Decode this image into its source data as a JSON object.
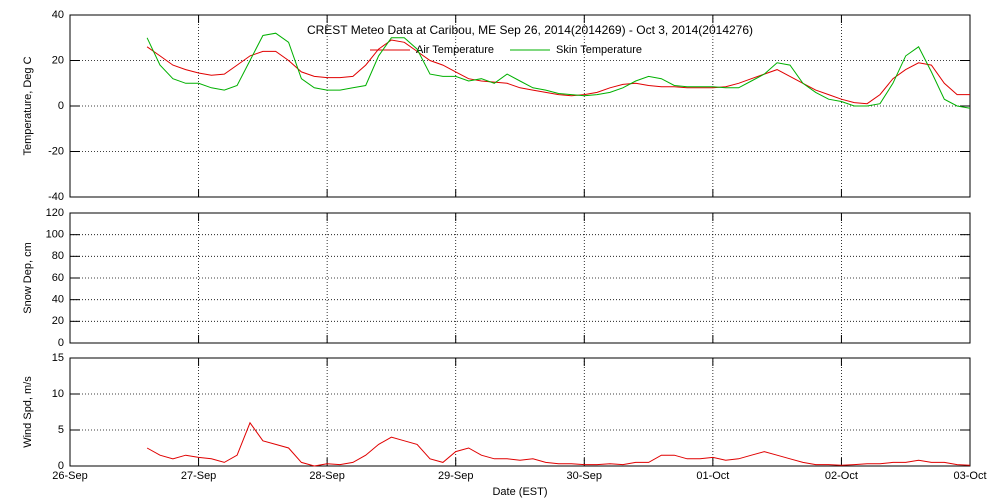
{
  "chart_data": [
    {
      "type": "line",
      "title": "CREST Meteo Data at Caribou, ME   Sep 26, 2014(2014269) - Oct  3, 2014(2014276)",
      "ylabel": "Temperature, Deg C",
      "xlim": [
        0,
        7
      ],
      "xticks": [
        0,
        1,
        2,
        3,
        4,
        5,
        6,
        7
      ],
      "ylim": [
        -40,
        40
      ],
      "yticks": [
        -40,
        -20,
        0,
        20,
        40
      ],
      "grid": true,
      "x": [
        0.6,
        0.7,
        0.8,
        0.9,
        1.0,
        1.1,
        1.2,
        1.3,
        1.4,
        1.5,
        1.6,
        1.7,
        1.8,
        1.9,
        2.0,
        2.1,
        2.2,
        2.3,
        2.4,
        2.5,
        2.6,
        2.7,
        2.8,
        2.9,
        3.0,
        3.1,
        3.2,
        3.3,
        3.4,
        3.5,
        3.6,
        3.7,
        3.8,
        3.9,
        4.0,
        4.1,
        4.2,
        4.3,
        4.4,
        4.5,
        4.6,
        4.7,
        4.8,
        4.9,
        5.0,
        5.1,
        5.2,
        5.3,
        5.4,
        5.5,
        5.6,
        5.7,
        5.8,
        5.9,
        6.0,
        6.1,
        6.2,
        6.3,
        6.4,
        6.5,
        6.6,
        6.7,
        6.8,
        6.9,
        7.0
      ],
      "series": [
        {
          "name": "Air Temperature",
          "color": "#e00000",
          "values": [
            26,
            22,
            18,
            16,
            14.5,
            13.5,
            14,
            18,
            22,
            24,
            24,
            20,
            15,
            13,
            12.5,
            12.5,
            13,
            18,
            25,
            29,
            28,
            24,
            20,
            18,
            15,
            12,
            11,
            10.5,
            10,
            8,
            7,
            6,
            5,
            4.5,
            5,
            6,
            8,
            9.5,
            10,
            9,
            8.5,
            8.5,
            8,
            8,
            8,
            8.5,
            10,
            12,
            14,
            16,
            13,
            10,
            7,
            5,
            3,
            1.5,
            1,
            5,
            12,
            16,
            19,
            18,
            10,
            5,
            5
          ]
        },
        {
          "name": "Skin Temperature",
          "color": "#00b000",
          "values": [
            30,
            18,
            12,
            10,
            10,
            8,
            7,
            9,
            20,
            31,
            32,
            28,
            12,
            8,
            7,
            7,
            8,
            9,
            22,
            30,
            30,
            25,
            14,
            13,
            13,
            11,
            12,
            10,
            14,
            11,
            8,
            7,
            5.5,
            5,
            4.5,
            5,
            6,
            8,
            11,
            13,
            12,
            9,
            8.5,
            8.5,
            8.5,
            8,
            8,
            11,
            14,
            19,
            18,
            10,
            6,
            3,
            2,
            0,
            0,
            1,
            10,
            22,
            26,
            15,
            3,
            0,
            -1
          ]
        }
      ],
      "legend": "top"
    },
    {
      "type": "line",
      "ylabel": "Snow Dep, cm",
      "xlim": [
        0,
        7
      ],
      "xticks": [
        0,
        1,
        2,
        3,
        4,
        5,
        6,
        7
      ],
      "ylim": [
        0,
        120
      ],
      "yticks": [
        0,
        20,
        40,
        60,
        80,
        100,
        120
      ],
      "grid": true
    },
    {
      "type": "line",
      "ylabel": "Wind Spd, m/s",
      "xlabel": "Date (EST)",
      "xlim": [
        0,
        7
      ],
      "xticks": [
        {
          "value": 0,
          "label": "26-Sep"
        },
        {
          "value": 1,
          "label": "27-Sep"
        },
        {
          "value": 2,
          "label": "28-Sep"
        },
        {
          "value": 3,
          "label": "29-Sep"
        },
        {
          "value": 4,
          "label": "30-Sep"
        },
        {
          "value": 5,
          "label": "01-Oct"
        },
        {
          "value": 6,
          "label": "02-Oct"
        },
        {
          "value": 7,
          "label": "03-Oct"
        }
      ],
      "ylim": [
        0,
        15
      ],
      "yticks": [
        0,
        5,
        10,
        15
      ],
      "grid": true,
      "x": [
        0.6,
        0.7,
        0.8,
        0.9,
        1.0,
        1.1,
        1.2,
        1.3,
        1.4,
        1.5,
        1.6,
        1.7,
        1.8,
        1.9,
        2.0,
        2.1,
        2.2,
        2.3,
        2.4,
        2.5,
        2.6,
        2.7,
        2.8,
        2.9,
        3.0,
        3.1,
        3.2,
        3.3,
        3.4,
        3.5,
        3.6,
        3.7,
        3.8,
        3.9,
        4.0,
        4.1,
        4.2,
        4.3,
        4.4,
        4.5,
        4.6,
        4.7,
        4.8,
        4.9,
        5.0,
        5.1,
        5.2,
        5.3,
        5.4,
        5.5,
        5.6,
        5.7,
        5.8,
        5.9,
        6.0,
        6.1,
        6.2,
        6.3,
        6.4,
        6.5,
        6.6,
        6.7,
        6.8,
        6.9,
        7.0
      ],
      "series": [
        {
          "color": "#e00000",
          "values": [
            2.5,
            1.5,
            1,
            1.5,
            1.2,
            1,
            0.5,
            1.5,
            6,
            3.5,
            3,
            2.5,
            0.5,
            0,
            0.3,
            0.2,
            0.5,
            1.5,
            3,
            4,
            3.5,
            3,
            1,
            0.5,
            2,
            2.5,
            1.5,
            1,
            1,
            0.8,
            1,
            0.5,
            0.3,
            0.3,
            0.2,
            0.2,
            0.3,
            0.2,
            0.5,
            0.5,
            1.5,
            1.5,
            1,
            1,
            1.2,
            0.8,
            1,
            1.5,
            2,
            1.5,
            1,
            0.5,
            0.2,
            0.2,
            0.1,
            0.2,
            0.3,
            0.3,
            0.5,
            0.5,
            0.8,
            0.5,
            0.5,
            0.2,
            0.1
          ]
        }
      ]
    }
  ]
}
